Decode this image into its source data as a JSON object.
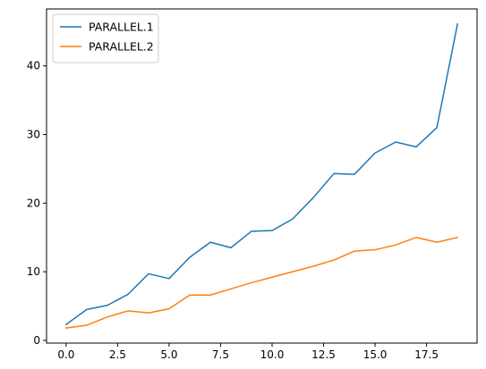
{
  "chart_data": {
    "type": "line",
    "x": [
      0,
      1,
      2,
      3,
      4,
      5,
      6,
      7,
      8,
      9,
      10,
      11,
      12,
      13,
      14,
      15,
      16,
      17,
      18,
      19
    ],
    "series": [
      {
        "name": "PARALLEL.1",
        "color": "#1f77b4",
        "values": [
          2.3,
          4.5,
          5.1,
          6.7,
          9.7,
          9.0,
          12.1,
          14.3,
          13.5,
          15.9,
          16.0,
          17.7,
          20.8,
          24.3,
          24.2,
          27.3,
          28.9,
          28.2,
          31.0,
          46.1
        ]
      },
      {
        "name": "PARALLEL.2",
        "color": "#ff7f0e",
        "values": [
          1.8,
          2.2,
          3.4,
          4.3,
          4.0,
          4.6,
          6.6,
          6.6,
          7.5,
          8.4,
          9.2,
          10.0,
          10.8,
          11.7,
          13.0,
          13.2,
          13.9,
          15.0,
          14.3,
          15.0
        ]
      }
    ],
    "xlim": [
      -0.95,
      19.95
    ],
    "ylim": [
      -0.4,
      48.3
    ],
    "xticks": [
      0,
      2.5,
      5,
      7.5,
      10,
      12.5,
      15,
      17.5
    ],
    "xtick_labels": [
      "0.0",
      "2.5",
      "5.0",
      "7.5",
      "10.0",
      "12.5",
      "15.0",
      "17.5"
    ],
    "yticks": [
      0,
      10,
      20,
      30,
      40
    ],
    "ytick_labels": [
      "0",
      "10",
      "20",
      "30",
      "40"
    ],
    "title": "",
    "xlabel": "",
    "ylabel": "",
    "grid": false,
    "legend_position": "top-left"
  }
}
